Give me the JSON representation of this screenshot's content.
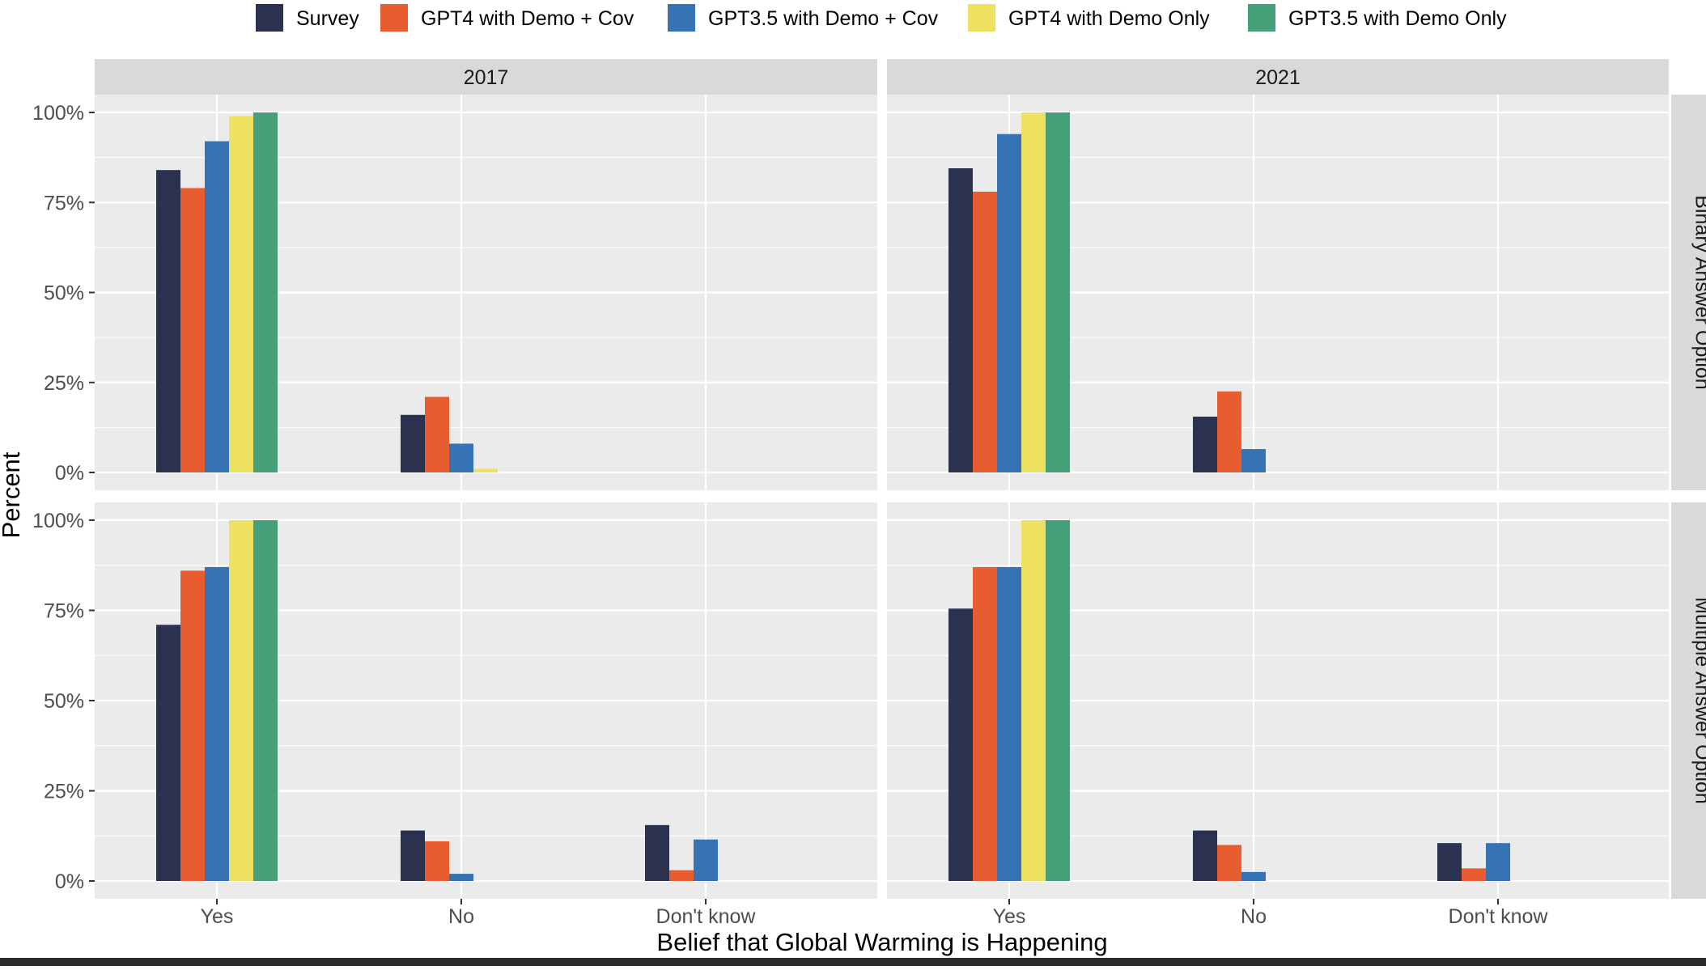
{
  "chart_data": {
    "type": "bar",
    "layout": "facet-grid",
    "xlabel": "Belief that Global Warming is Happening",
    "ylabel": "Percent",
    "categories": [
      "Yes",
      "No",
      "Don't know"
    ],
    "yticks": [
      "0%",
      "25%",
      "50%",
      "75%",
      "100%"
    ],
    "ylim": [
      0,
      100
    ],
    "grid": true,
    "legend_position": "top",
    "col_facets": [
      "2017",
      "2021"
    ],
    "row_facets": [
      "Binary Answer Option",
      "Multiple Answer Option"
    ],
    "series_names": [
      "Survey",
      "GPT4 with Demo + Cov",
      "GPT3.5 with Demo + Cov",
      "GPT4 with Demo Only",
      "GPT3.5 with Demo Only"
    ],
    "series_colors": [
      "#2b3250",
      "#e85d2f",
      "#3673b5",
      "#efe160",
      "#45a07a"
    ],
    "panels": [
      {
        "year": "2017",
        "option": "Binary Answer Option",
        "categories": [
          "Yes",
          "No"
        ],
        "values": [
          [
            84,
            16
          ],
          [
            79,
            21
          ],
          [
            92,
            8
          ],
          [
            99,
            1
          ],
          [
            100,
            0
          ]
        ]
      },
      {
        "year": "2021",
        "option": "Binary Answer Option",
        "categories": [
          "Yes",
          "No"
        ],
        "values": [
          [
            84.5,
            15.5
          ],
          [
            78,
            22.5
          ],
          [
            94,
            6.5
          ],
          [
            100,
            0
          ],
          [
            100,
            0
          ]
        ]
      },
      {
        "year": "2017",
        "option": "Multiple Answer Option",
        "categories": [
          "Yes",
          "No",
          "Don't know"
        ],
        "values": [
          [
            71,
            14,
            15.5
          ],
          [
            86,
            11,
            3
          ],
          [
            87,
            2,
            11.5
          ],
          [
            100,
            0,
            0
          ],
          [
            100,
            0,
            0
          ]
        ]
      },
      {
        "year": "2021",
        "option": "Multiple Answer Option",
        "categories": [
          "Yes",
          "No",
          "Don't know"
        ],
        "values": [
          [
            75.5,
            14,
            10.5
          ],
          [
            87,
            10,
            3.5
          ],
          [
            87,
            2.5,
            10.5
          ],
          [
            100,
            0,
            0
          ],
          [
            100,
            0,
            0
          ]
        ]
      }
    ]
  }
}
